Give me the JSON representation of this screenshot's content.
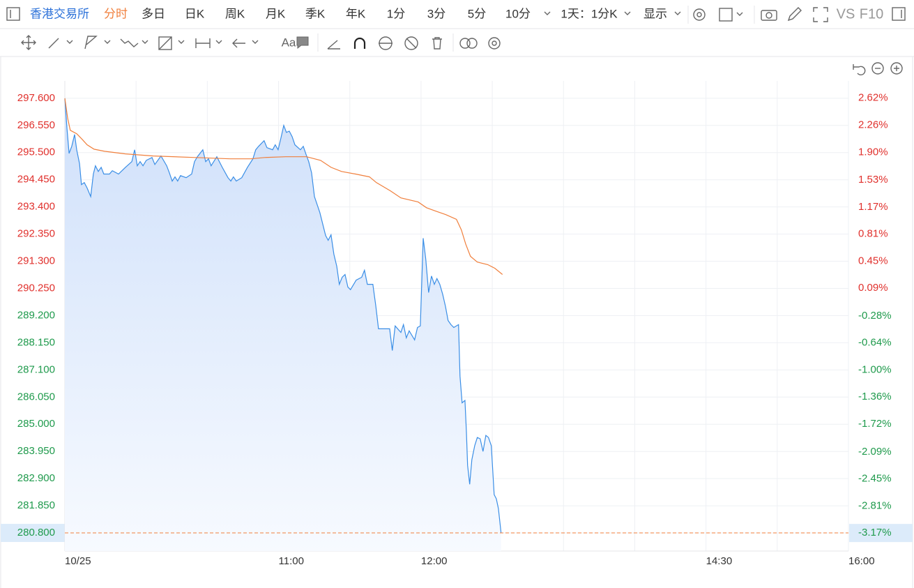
{
  "toolbar": {
    "exchange": "香港交易所",
    "tabs": [
      "分时",
      "多日",
      "日K",
      "周K",
      "月K",
      "季K",
      "年K",
      "1分",
      "3分",
      "5分",
      "10分"
    ],
    "active_tab": 0,
    "period": "1天：1分K",
    "display": "显示",
    "vs": "VS",
    "f10": "F10"
  },
  "drawing_toolbar": {
    "text_tool": "Aa"
  },
  "chart_data": {
    "type": "line",
    "xlim": [
      0,
      330
    ],
    "xticks": [
      {
        "value": 0,
        "label": "10/25"
      },
      {
        "value": 30,
        "label": null
      },
      {
        "value": 60,
        "label": null
      },
      {
        "value": 90,
        "label": "11:00"
      },
      {
        "value": 120,
        "label": null
      },
      {
        "value": 150,
        "label": "12:00"
      },
      {
        "value": 180,
        "label": null
      },
      {
        "value": 210,
        "label": null
      },
      {
        "value": 240,
        "label": null
      },
      {
        "value": 270,
        "label": "14:30"
      },
      {
        "value": 300,
        "label": null
      },
      {
        "value": 330,
        "label": "16:00"
      }
    ],
    "ylim": [
      280.1,
      298.27
    ],
    "yticks": [
      {
        "value": 297.6,
        "label": "297.600"
      },
      {
        "value": 296.55,
        "label": "296.550"
      },
      {
        "value": 295.5,
        "label": "295.500"
      },
      {
        "value": 294.45,
        "label": "294.450"
      },
      {
        "value": 293.4,
        "label": "293.400"
      },
      {
        "value": 292.35,
        "label": "292.350"
      },
      {
        "value": 291.3,
        "label": "291.300"
      },
      {
        "value": 290.25,
        "label": "290.250"
      },
      {
        "value": 289.2,
        "label": "289.200"
      },
      {
        "value": 288.15,
        "label": "288.150"
      },
      {
        "value": 287.1,
        "label": "287.100"
      },
      {
        "value": 286.05,
        "label": "286.050"
      },
      {
        "value": 285,
        "label": "285.000"
      },
      {
        "value": 283.95,
        "label": "283.950"
      },
      {
        "value": 282.9,
        "label": "282.900"
      },
      {
        "value": 281.85,
        "label": "281.850"
      },
      {
        "value": 280.8,
        "label": "280.800"
      }
    ],
    "y2lim": [
      -3.41,
      2.85
    ],
    "y2ticks": [
      {
        "value": 2.62,
        "label": "2.62%"
      },
      {
        "value": 2.26,
        "label": "2.26%"
      },
      {
        "value": 1.9,
        "label": "1.90%"
      },
      {
        "value": 1.53,
        "label": "1.53%"
      },
      {
        "value": 1.17,
        "label": "1.17%"
      },
      {
        "value": 0.81,
        "label": "0.81%"
      },
      {
        "value": 0.45,
        "label": "0.45%"
      },
      {
        "value": 0.09,
        "label": "0.09%"
      },
      {
        "value": -0.28,
        "label": "-0.28%"
      },
      {
        "value": -0.64,
        "label": "-0.64%"
      },
      {
        "value": -1,
        "label": "-1.00%"
      },
      {
        "value": -1.36,
        "label": "-1.36%"
      },
      {
        "value": -1.72,
        "label": "-1.72%"
      },
      {
        "value": -2.09,
        "label": "-2.09%"
      },
      {
        "value": -2.45,
        "label": "-2.45%"
      },
      {
        "value": -2.81,
        "label": "-2.81%"
      },
      {
        "value": -3.17,
        "label": "-3.17%"
      }
    ],
    "grid": true,
    "up_color": "#e0302c",
    "down_color": "#1f9a4c",
    "last_price_color": "#f07f3c",
    "last_price_highlight": "#dcebfa",
    "series": [
      {
        "color": "#3a8ee6",
        "fill": true,
        "x": [
          0,
          0.9,
          1.8,
          2.9,
          4.1,
          5.0,
          6.2,
          7.0,
          8.2,
          9.4,
          10.9,
          12.0,
          12.9,
          14.1,
          15.3,
          16.4,
          18.8,
          20.0,
          22.6,
          25.5,
          28.2,
          29.4,
          30.5,
          31.7,
          32.9,
          34.3,
          36.7,
          37.9,
          40.5,
          42.9,
          44.0,
          45.2,
          46.4,
          47.5,
          48.7,
          51.1,
          53.4,
          54.6,
          55.8,
          58.1,
          59.3,
          60.5,
          61.6,
          64.0,
          66.3,
          68.7,
          69.9,
          71.0,
          72.2,
          74.5,
          76.9,
          79.2,
          80.4,
          81.6,
          83.9,
          85.1,
          87.5,
          88.6,
          89.8,
          91.0,
          92.2,
          93.3,
          94.5,
          95.7,
          96.9,
          99.2,
          100.4,
          101.6,
          102.7,
          103.9,
          105.1,
          107.4,
          109.8,
          110.9,
          112.1,
          113.3,
          114.5,
          115.6,
          116.8,
          118.0,
          119.2,
          120.3,
          122.7,
          125.0,
          126.2,
          127.4,
          129.7,
          130.9,
          132.1,
          136.8,
          137.9,
          139.1,
          141.5,
          142.6,
          143.8,
          145.0,
          147.3,
          148.5,
          149.7,
          150.9,
          152.0,
          153.2,
          154.4,
          155.6,
          156.7,
          157.9,
          159.1,
          160.3,
          161.4,
          162.6,
          163.8,
          165.8,
          166.4,
          167.3,
          168.5,
          169.1,
          169.6,
          170.5,
          171.4,
          172.6,
          173.7,
          174.9,
          176.1,
          177.3,
          178.4,
          179.6,
          180.8,
          181.7,
          182.6,
          183.7
        ],
        "values": [
          297.6,
          296.42,
          295.47,
          295.74,
          296.2,
          295.61,
          295.07,
          294.26,
          294.34,
          294.13,
          293.8,
          294.67,
          294.99,
          294.77,
          294.93,
          294.67,
          294.67,
          294.8,
          294.67,
          294.93,
          295.15,
          295.61,
          294.99,
          295.15,
          294.99,
          295.2,
          295.31,
          295.04,
          295.37,
          294.99,
          294.72,
          294.4,
          294.56,
          294.4,
          294.61,
          294.53,
          294.67,
          295.15,
          295.34,
          295.61,
          295.15,
          295.26,
          294.99,
          295.34,
          294.93,
          294.53,
          294.4,
          294.56,
          294.4,
          294.53,
          294.93,
          295.26,
          295.61,
          295.74,
          295.96,
          295.69,
          295.61,
          295.8,
          295.61,
          296.07,
          296.55,
          296.28,
          296.33,
          296.12,
          295.8,
          295.61,
          295.74,
          295.42,
          295.15,
          294.72,
          293.8,
          293.18,
          292.3,
          292.11,
          292.32,
          291.57,
          291.11,
          290.41,
          290.68,
          290.79,
          290.3,
          290.2,
          290.57,
          290.68,
          290.95,
          290.41,
          290.41,
          289.6,
          288.69,
          288.69,
          287.85,
          288.8,
          288.55,
          288.85,
          288.34,
          288.61,
          288.26,
          288.74,
          288.8,
          292.19,
          291.38,
          290.09,
          290.73,
          290.41,
          290.63,
          290.41,
          290.03,
          289.55,
          289.01,
          288.85,
          288.74,
          288.85,
          286.86,
          285.83,
          285.92,
          284.7,
          283.41,
          282.68,
          283.63,
          284.17,
          284.49,
          284.44,
          283.95,
          284.57,
          284.49,
          284.17,
          282.28,
          282.12,
          281.74,
          280.8
        ]
      },
      {
        "color": "#f07f3c",
        "fill": false,
        "x": [
          0,
          1.2,
          2.3,
          5.0,
          7.3,
          9.4,
          12.3,
          16.7,
          25.5,
          37.3,
          54.9,
          69.6,
          78.4,
          84.2,
          93.0,
          101.8,
          107.7,
          112.1,
          116.5,
          122.4,
          128.3,
          131.2,
          137.1,
          141.5,
          148.8,
          152.3,
          156.1,
          160.5,
          164.9,
          167.0,
          168.8,
          170.8,
          173.7,
          178.1,
          181.1,
          184.3
        ],
        "values": [
          297.6,
          296.82,
          296.36,
          296.23,
          296.01,
          295.8,
          295.63,
          295.55,
          295.45,
          295.37,
          295.31,
          295.26,
          295.26,
          295.31,
          295.34,
          295.34,
          295.2,
          294.93,
          294.77,
          294.67,
          294.56,
          294.34,
          294.02,
          293.75,
          293.59,
          293.37,
          293.24,
          293.1,
          292.92,
          292.51,
          291.97,
          291.49,
          291.27,
          291.17,
          291.03,
          290.79
        ]
      }
    ]
  }
}
